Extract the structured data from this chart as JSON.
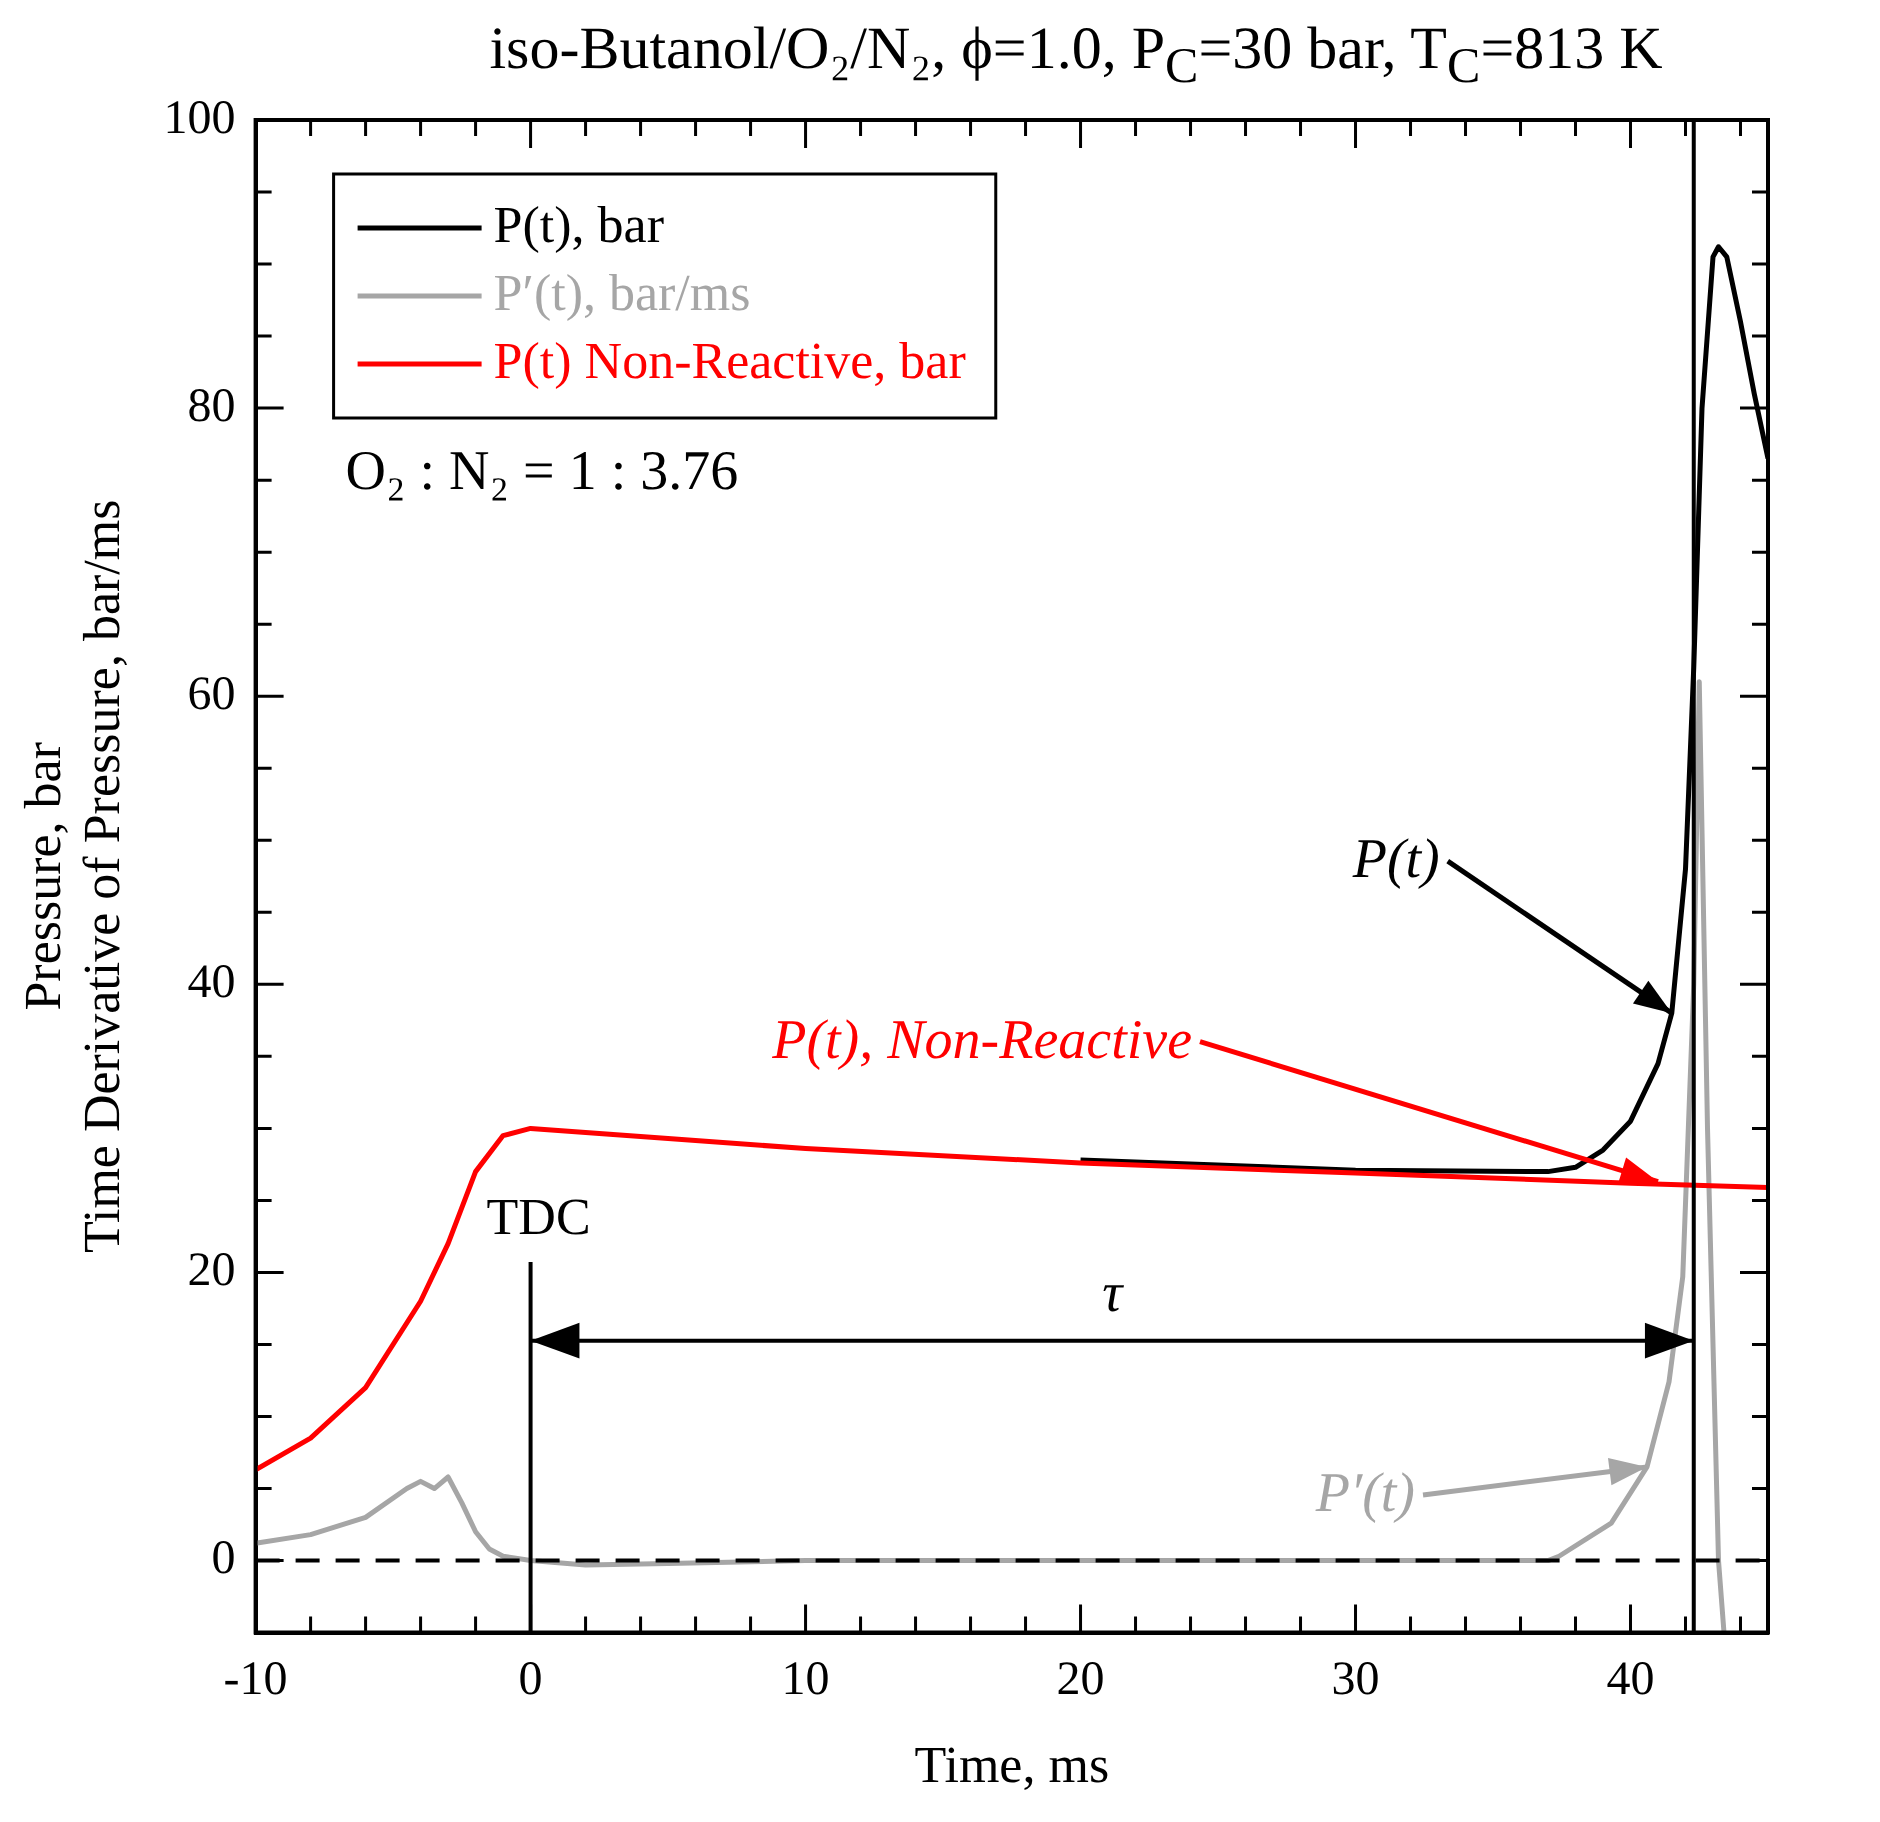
{
  "chart_data": {
    "type": "line",
    "title": "iso-Butanol/O₂/N₂, ϕ=1.0, P$_{C}$=30 bar, T$_{C}$=813 K",
    "xlabel": "Time, ms",
    "ylabel": "Pressure, bar\nTime Derivative of Pressure, bar/ms",
    "xlim": [
      -10,
      45
    ],
    "ylim": [
      -5,
      100
    ],
    "xticks": [
      -10,
      {
        "value": -8,
        "label": null
      },
      {
        "value": -6,
        "label": null
      },
      {
        "value": -4,
        "label": null
      },
      {
        "value": -2,
        "label": null
      },
      0,
      {
        "value": 2,
        "label": null
      },
      {
        "value": 4,
        "label": null
      },
      {
        "value": 6,
        "label": null
      },
      {
        "value": 8,
        "label": null
      },
      10,
      {
        "value": 12,
        "label": null
      },
      {
        "value": 14,
        "label": null
      },
      {
        "value": 16,
        "label": null
      },
      {
        "value": 18,
        "label": null
      },
      20,
      {
        "value": 22,
        "label": null
      },
      {
        "value": 24,
        "label": null
      },
      {
        "value": 26,
        "label": null
      },
      {
        "value": 28,
        "label": null
      },
      30,
      {
        "value": 32,
        "label": null
      },
      {
        "value": 34,
        "label": null
      },
      {
        "value": 36,
        "label": null
      },
      {
        "value": 38,
        "label": null
      },
      40,
      {
        "value": 42,
        "label": null
      },
      {
        "value": 44,
        "label": null
      }
    ],
    "yticks": [
      {
        "value": -5,
        "label": null
      },
      0,
      {
        "value": 5,
        "label": null
      },
      {
        "value": 10,
        "label": null
      },
      {
        "value": 15,
        "label": null
      },
      20,
      {
        "value": 25,
        "label": null
      },
      {
        "value": 30,
        "label": null
      },
      {
        "value": 35,
        "label": null
      },
      40,
      {
        "value": 45,
        "label": null
      },
      {
        "value": 50,
        "label": null
      },
      {
        "value": 55,
        "label": null
      },
      60,
      {
        "value": 65,
        "label": null
      },
      {
        "value": 70,
        "label": null
      },
      {
        "value": 75,
        "label": null
      },
      80,
      {
        "value": 85,
        "label": null
      },
      {
        "value": 90,
        "label": null
      },
      {
        "value": 95,
        "label": null
      },
      100
    ],
    "grid": false,
    "legend": "top left",
    "marker": "none",
    "line_style": "solid",
    "series": [
      {
        "name": "P(t), bar",
        "color": "#000000",
        "x": [
          20,
          30,
          37,
          38,
          39,
          40,
          41,
          41.5,
          42,
          42.3,
          42.6,
          43,
          43.2,
          43.5,
          44,
          44.5,
          45
        ],
        "values": [
          27.8,
          27.1,
          27,
          27.3,
          28.5,
          30.5,
          34.5,
          38,
          48,
          62,
          80,
          90.5,
          91.2,
          90.5,
          86,
          81,
          76.5
        ]
      },
      {
        "name": "P′(t), bar/ms",
        "color": "#a6a6a6",
        "x": [
          -10,
          -8,
          -6,
          -4.5,
          -4,
          -3.5,
          -3,
          -2.5,
          -2,
          -1.5,
          -1,
          0,
          2,
          5,
          10,
          20,
          30,
          37,
          37.4,
          39.3,
          40.6,
          41.4,
          41.9,
          42.3,
          42.5,
          42.8,
          43.2,
          43.4
        ],
        "values": [
          1.2,
          1.8,
          3,
          5,
          5.5,
          5,
          5.8,
          4,
          2,
          0.8,
          0.3,
          0,
          -0.3,
          -0.2,
          0,
          0,
          0,
          0,
          0.3,
          2.6,
          6.5,
          12.4,
          19.7,
          40,
          61,
          30,
          0,
          -5
        ]
      },
      {
        "name": "P(t) Non-Reactive, bar",
        "color": "#ff0000",
        "x": [
          -10,
          -8,
          -6,
          -4,
          -3,
          -2,
          -1,
          0,
          5,
          10,
          20,
          30,
          40,
          45
        ],
        "values": [
          6.3,
          8.5,
          12,
          18,
          22,
          27,
          29.5,
          30,
          29.3,
          28.6,
          27.6,
          26.9,
          26.2,
          25.9
        ]
      }
    ],
    "ref_lines": [
      {
        "axis": "y",
        "value": 0,
        "line_style": "dashed",
        "color": "#000000"
      },
      {
        "axis": "x",
        "value": 0,
        "label": "TDC",
        "color": "#000000"
      },
      {
        "axis": "x",
        "value": 42.3,
        "color": "#000000"
      }
    ],
    "annotations": [
      {
        "text": "P(t)",
        "x": 41.5,
        "y": 38
      },
      {
        "text": "P(t), Non-Reactive",
        "x": 41,
        "y": 26.3
      },
      {
        "text": "P′(t)",
        "x": 40.6,
        "y": 6.5
      },
      "τ",
      "O₂ : N₂ = 1 : 3.76"
    ]
  }
}
